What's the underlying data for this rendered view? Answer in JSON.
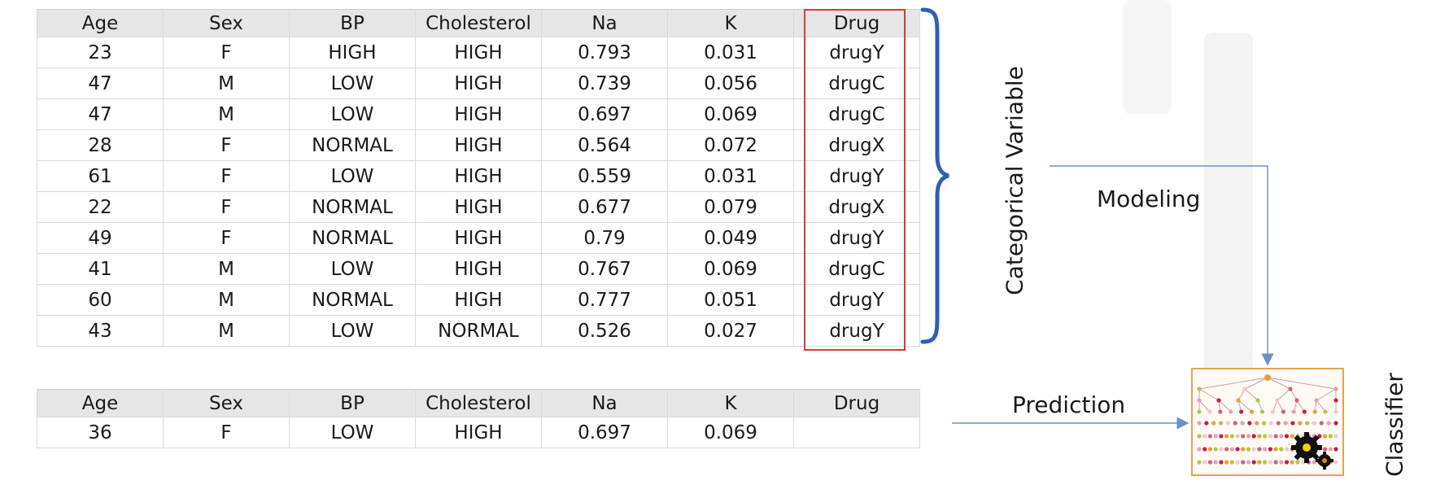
{
  "columns": [
    "Age",
    "Sex",
    "BP",
    "Cholesterol",
    "Na",
    "K",
    "Drug"
  ],
  "training_rows": [
    [
      "23",
      "F",
      "HIGH",
      "HIGH",
      "0.793",
      "0.031",
      "drugY"
    ],
    [
      "47",
      "M",
      "LOW",
      "HIGH",
      "0.739",
      "0.056",
      "drugC"
    ],
    [
      "47",
      "M",
      "LOW",
      "HIGH",
      "0.697",
      "0.069",
      "drugC"
    ],
    [
      "28",
      "F",
      "NORMAL",
      "HIGH",
      "0.564",
      "0.072",
      "drugX"
    ],
    [
      "61",
      "F",
      "LOW",
      "HIGH",
      "0.559",
      "0.031",
      "drugY"
    ],
    [
      "22",
      "F",
      "NORMAL",
      "HIGH",
      "0.677",
      "0.079",
      "drugX"
    ],
    [
      "49",
      "F",
      "NORMAL",
      "HIGH",
      "0.79",
      "0.049",
      "drugY"
    ],
    [
      "41",
      "M",
      "LOW",
      "HIGH",
      "0.767",
      "0.069",
      "drugC"
    ],
    [
      "60",
      "M",
      "NORMAL",
      "HIGH",
      "0.777",
      "0.051",
      "drugY"
    ],
    [
      "43",
      "M",
      "LOW",
      "NORMAL",
      "0.526",
      "0.027",
      "drugY"
    ]
  ],
  "test_columns": [
    "Age",
    "Sex",
    "BP",
    "Cholesterol",
    "Na",
    "K",
    "Drug"
  ],
  "test_rows": [
    [
      "36",
      "F",
      "LOW",
      "HIGH",
      "0.697",
      "0.069",
      ""
    ]
  ],
  "labels": {
    "categorical_variable": "Categorical Variable",
    "modeling": "Modeling",
    "prediction": "Prediction",
    "classifier": "Classifier"
  },
  "colors": {
    "highlight": "#d93a3a",
    "brace": "#2f5fb3",
    "arrow": "#6f8fd0",
    "classifier_border": "#e8a050",
    "header_bg": "#e6e6e6"
  },
  "icons": {
    "classifier": "decision-tree-with-gears-icon"
  }
}
